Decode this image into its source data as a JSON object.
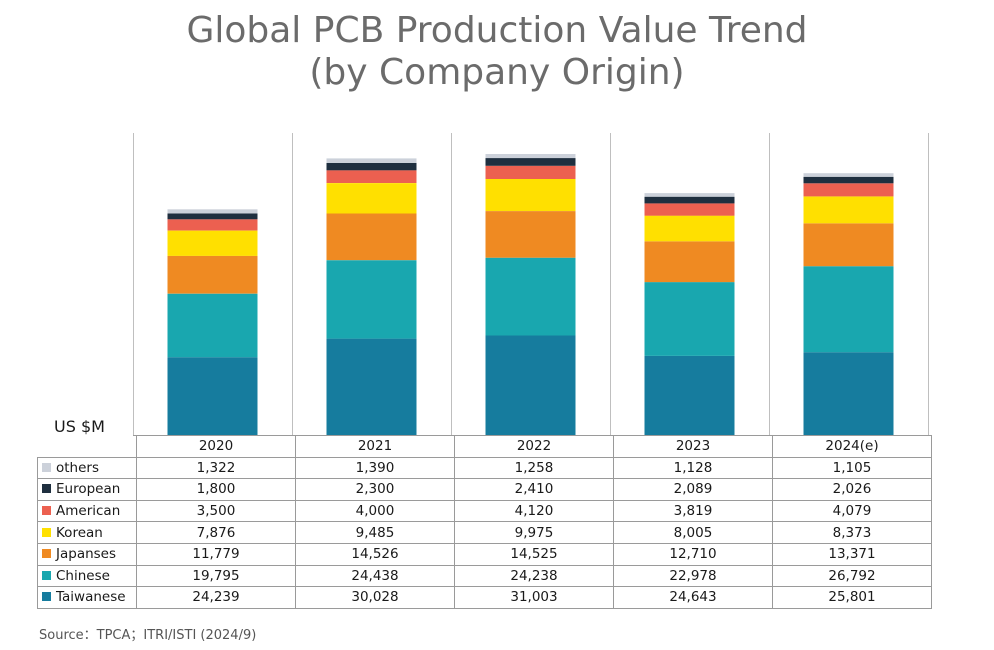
{
  "chart_data": {
    "type": "bar",
    "stacked": true,
    "title": "Global PCB Production Value Trend",
    "title_line2": "(by Company Origin)",
    "ylabel": "US $M",
    "ylim": [
      0,
      95000
    ],
    "categories": [
      "2020",
      "2021",
      "2022",
      "2023",
      "2024(e)"
    ],
    "series": [
      {
        "name": "Taiwanese",
        "color": "#167c9e",
        "values": [
          24239,
          30028,
          31003,
          24643,
          25801
        ]
      },
      {
        "name": "Chinese",
        "color": "#19a7af",
        "values": [
          19795,
          24438,
          24238,
          22978,
          26792
        ]
      },
      {
        "name": "Japanses",
        "color": "#ef8a22",
        "values": [
          11779,
          14526,
          14525,
          12710,
          13371
        ]
      },
      {
        "name": "Korean",
        "color": "#ffe000",
        "values": [
          7876,
          9485,
          9975,
          8005,
          8373
        ]
      },
      {
        "name": "American",
        "color": "#ec6050",
        "values": [
          3500,
          4000,
          4120,
          3819,
          4079
        ]
      },
      {
        "name": "European",
        "color": "#1f2f3f",
        "values": [
          1800,
          2300,
          2410,
          2089,
          2026
        ]
      },
      {
        "name": "others",
        "color": "#ccd1da",
        "values": [
          1322,
          1390,
          1258,
          1128,
          1105
        ]
      }
    ],
    "table_rows": [
      {
        "label": "others",
        "color": "#ccd1da",
        "values": [
          "1,322",
          "1,390",
          "1,258",
          "1,128",
          "1,105"
        ]
      },
      {
        "label": "European",
        "color": "#1f2f3f",
        "values": [
          "1,800",
          "2,300",
          "2,410",
          "2,089",
          "2,026"
        ]
      },
      {
        "label": "American",
        "color": "#ec6050",
        "values": [
          "3,500",
          "4,000",
          "4,120",
          "3,819",
          "4,079"
        ]
      },
      {
        "label": "Korean",
        "color": "#ffe000",
        "values": [
          "7,876",
          "9,485",
          "9,975",
          "8,005",
          "8,373"
        ]
      },
      {
        "label": "Japanses",
        "color": "#ef8a22",
        "values": [
          "11,779",
          "14,526",
          "14,525",
          "12,710",
          "13,371"
        ]
      },
      {
        "label": "Chinese",
        "color": "#19a7af",
        "values": [
          "19,795",
          "24,438",
          "24,238",
          "22,978",
          "26,792"
        ]
      },
      {
        "label": "Taiwanese",
        "color": "#167c9e",
        "values": [
          "24,239",
          "30,028",
          "31,003",
          "24,643",
          "25,801"
        ]
      }
    ]
  },
  "source": "Source：TPCA；ITRI/ISTI (2024/9)"
}
